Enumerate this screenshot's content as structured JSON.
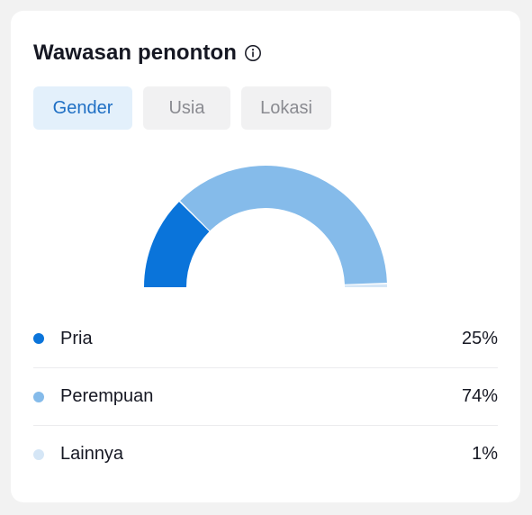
{
  "card": {
    "title": "Wawasan penonton",
    "info_icon": "info-circle-icon"
  },
  "tabs": [
    {
      "label": "Gender",
      "active": true
    },
    {
      "label": "Usia",
      "active": false
    },
    {
      "label": "Lokasi",
      "active": false
    }
  ],
  "colors": {
    "pria": "#0a74da",
    "perempuan": "#85bbea",
    "lainnya": "#d5e6f6",
    "active_tab_bg": "#e3f0fb",
    "active_tab_text": "#1e6fc4"
  },
  "gender": [
    {
      "label": "Pria",
      "value": "25%",
      "percent": 25,
      "color": "#0a74da"
    },
    {
      "label": "Perempuan",
      "value": "74%",
      "percent": 74,
      "color": "#85bbea"
    },
    {
      "label": "Lainnya",
      "value": "1%",
      "percent": 1,
      "color": "#d5e6f6"
    }
  ]
}
